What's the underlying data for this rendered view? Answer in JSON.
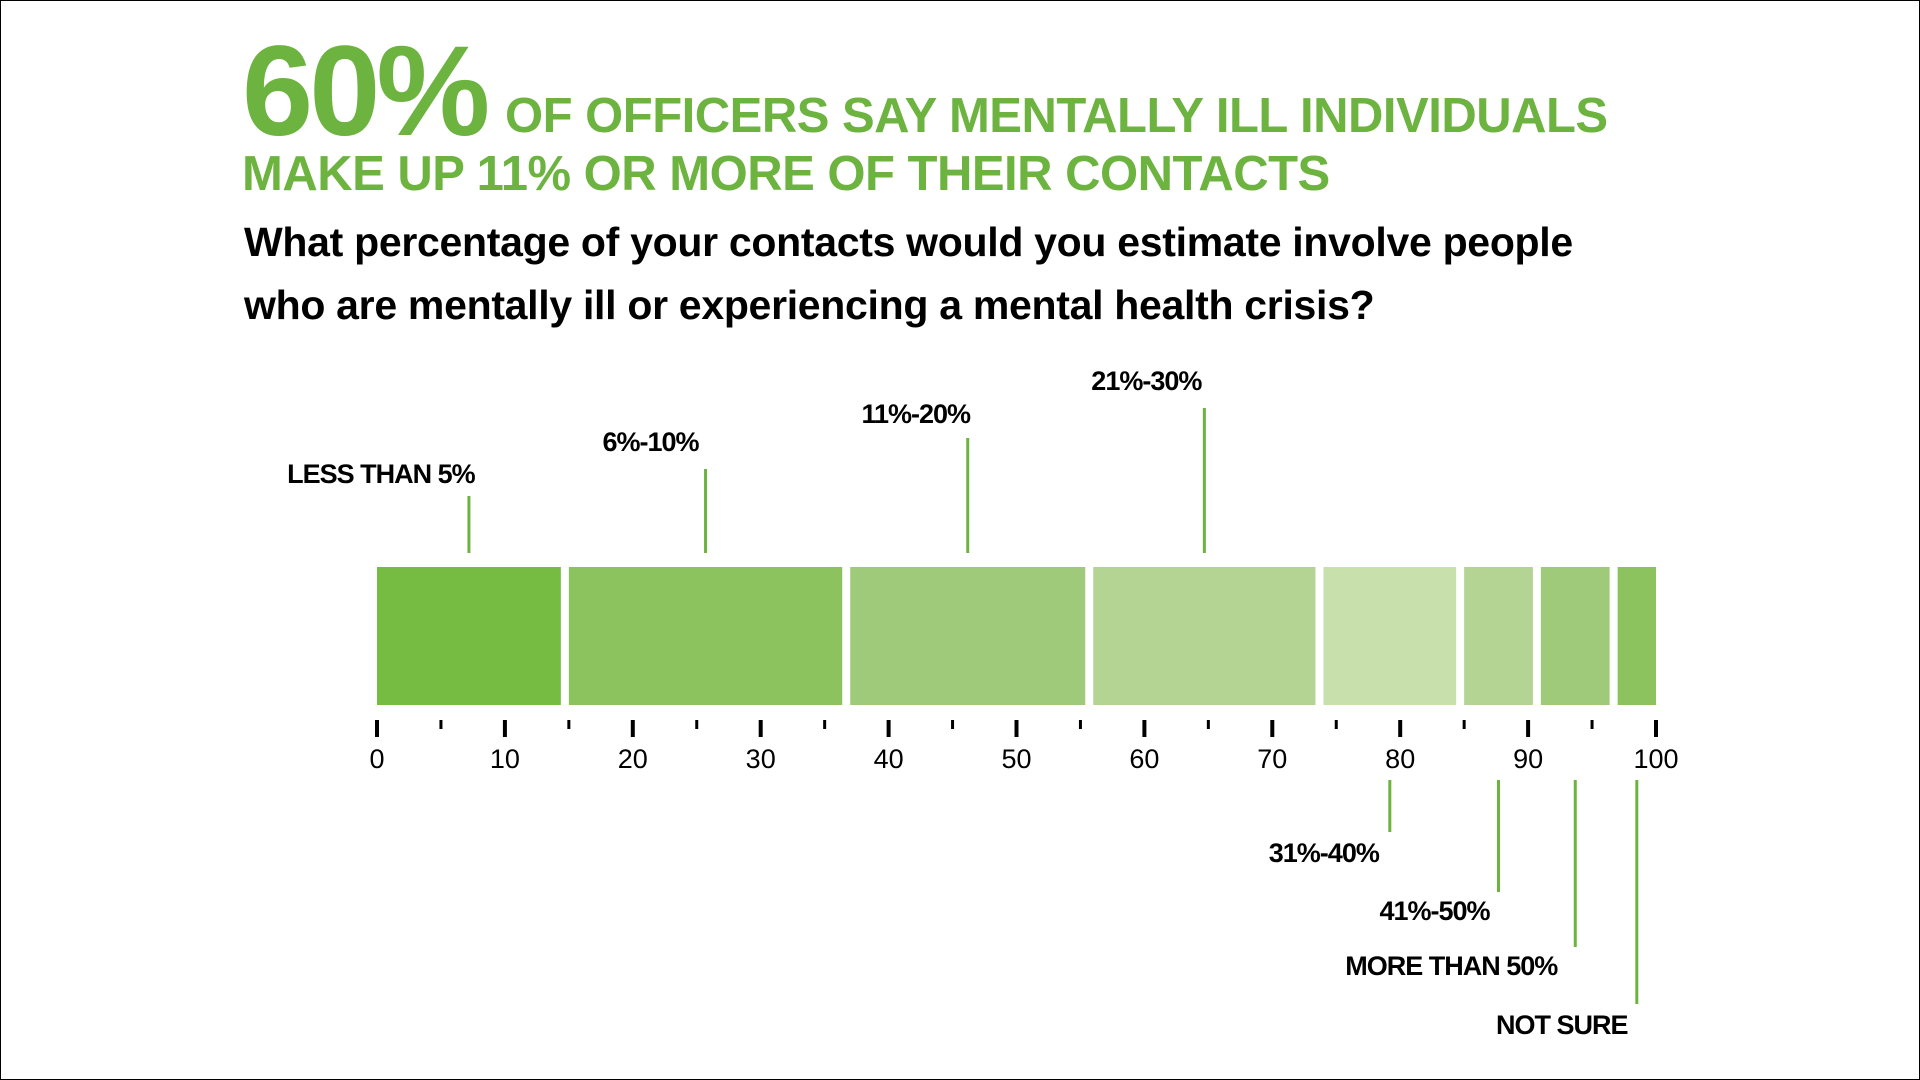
{
  "headline": {
    "big_stat": "60%",
    "line1": "OF OFFICERS SAY MENTALLY ILL INDIVIDUALS",
    "line2": "MAKE UP 11% OR MORE OF THEIR CONTACTS"
  },
  "question": {
    "line1": "What percentage of your contacts would you estimate involve people",
    "line2": "who are mentally ill or experiencing a mental health crisis?"
  },
  "colors": {
    "accent": "#6cb33f"
  },
  "chart_data": {
    "type": "bar",
    "orientation": "horizontal-stacked",
    "categories": [
      "LESS THAN 5%",
      "6%-10%",
      "11%-20%",
      "21%-30%",
      "31%-40%",
      "41%-50%",
      "MORE THAN 50%",
      "NOT SURE"
    ],
    "values": [
      15,
      22,
      19,
      18,
      11,
      6,
      6,
      3
    ],
    "colors": [
      "#76bc43",
      "#8dc35e",
      "#9fca7a",
      "#b3d492",
      "#c8e0ac",
      "#b3d492",
      "#9fca7a",
      "#8dc35e"
    ],
    "xlim": [
      0,
      100
    ],
    "x_ticks": [
      "0",
      "10",
      "20",
      "30",
      "40",
      "50",
      "60",
      "70",
      "80",
      "90",
      "100"
    ],
    "title": "",
    "xlabel": "",
    "ylabel": "",
    "grid": false
  }
}
